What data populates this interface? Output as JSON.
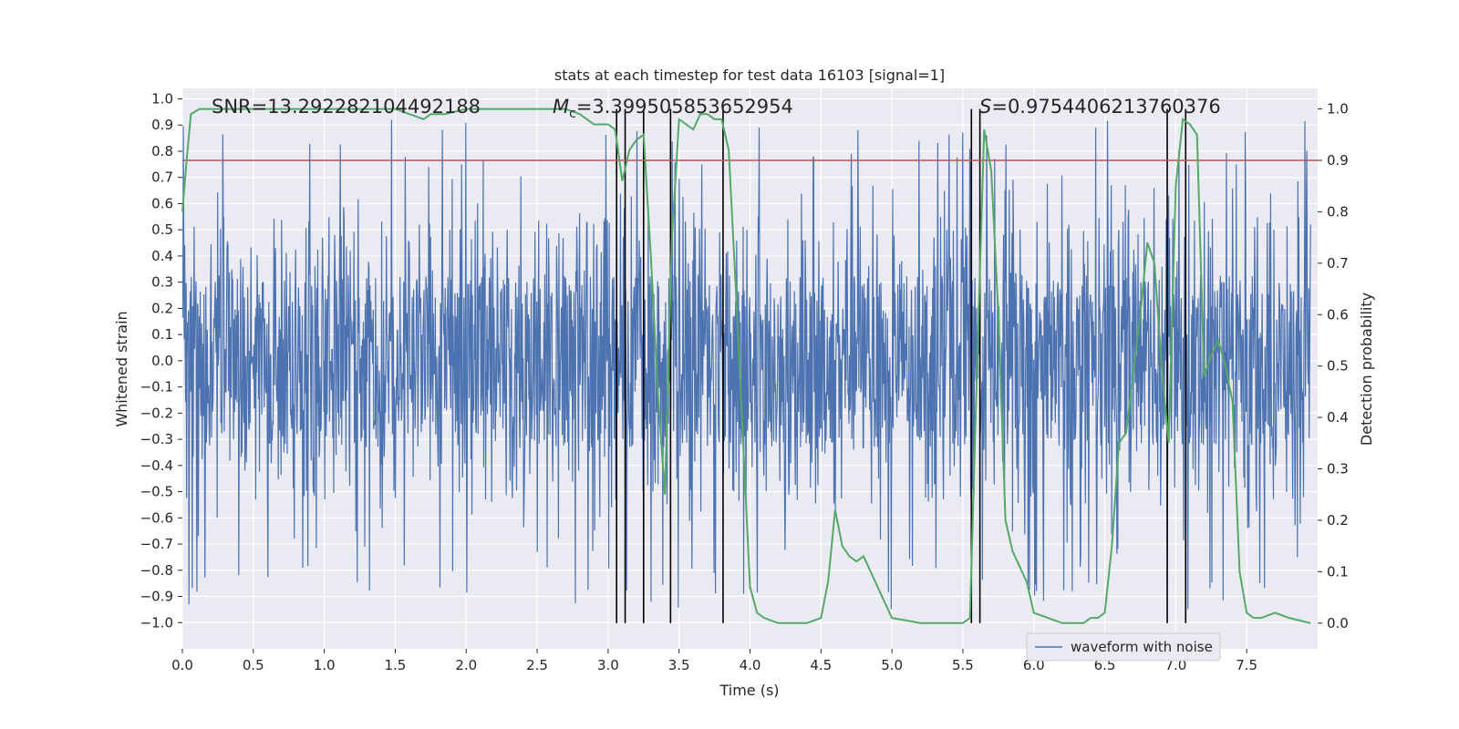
{
  "chart_data": {
    "type": "line",
    "title": "stats at each timestep for test data 16103 [signal=1]",
    "xlabel": "Time (s)",
    "ylabel": "Whitened strain",
    "ylabel_right": "Detection probability",
    "xlim": [
      0.0,
      8.0
    ],
    "ylim": [
      -1.1,
      1.04
    ],
    "ylim_right": [
      -0.05,
      1.04
    ],
    "x_ticks": [
      0.0,
      0.5,
      1.0,
      1.5,
      2.0,
      2.5,
      3.0,
      3.5,
      4.0,
      4.5,
      5.0,
      5.5,
      6.0,
      6.5,
      7.0,
      7.5
    ],
    "x_tick_labels": [
      "0.0",
      "0.5",
      "1.0",
      "1.5",
      "2.0",
      "2.5",
      "3.0",
      "3.5",
      "4.0",
      "4.5",
      "5.0",
      "5.5",
      "6.0",
      "6.5",
      "7.0",
      "7.5"
    ],
    "y_ticks": [
      -1.0,
      -0.9,
      -0.8,
      -0.7,
      -0.6,
      -0.5,
      -0.4,
      -0.3,
      -0.2,
      -0.1,
      0.0,
      0.1,
      0.2,
      0.3,
      0.4,
      0.5,
      0.6,
      0.7,
      0.8,
      0.9,
      1.0
    ],
    "y_tick_labels": [
      "−1.0",
      "−0.9",
      "−0.8",
      "−0.7",
      "−0.6",
      "−0.5",
      "−0.4",
      "−0.3",
      "−0.2",
      "−0.1",
      "0.0",
      "0.1",
      "0.2",
      "0.3",
      "0.4",
      "0.5",
      "0.6",
      "0.7",
      "0.8",
      "0.9",
      "1.0"
    ],
    "y_right_ticks": [
      0.0,
      0.1,
      0.2,
      0.3,
      0.4,
      0.5,
      0.6,
      0.7,
      0.8,
      0.9,
      1.0
    ],
    "y_right_tick_labels": [
      "0.0",
      "0.1",
      "0.2",
      "0.3",
      "0.4",
      "0.5",
      "0.6",
      "0.7",
      "0.8",
      "0.9",
      "1.0"
    ],
    "annotations": {
      "snr": "SNR=13.292282104492188",
      "mc_symbol": "M",
      "mc_sub": "c",
      "mc_value": "=3.399505853652954",
      "s_symbol": "S",
      "s_value": "=0.9754406213760376"
    },
    "threshold": {
      "value_right": 0.9,
      "color": "#c44e52"
    },
    "vertical_lines_x": [
      3.06,
      3.12,
      3.25,
      3.44,
      3.81,
      5.56,
      5.62,
      6.94,
      7.07
    ],
    "waveform": {
      "name": "waveform with noise",
      "color": "#4c72b0",
      "core_amplitude": 0.33,
      "spike_max": 0.92,
      "spike_min": -0.95,
      "description_points": "dense noise"
    },
    "legend": {
      "entries": [
        "waveform with noise"
      ],
      "position": "lower right"
    },
    "probability": {
      "color": "#55a868",
      "x": [
        0.0,
        0.03,
        0.06,
        0.12,
        0.5,
        1.0,
        1.3,
        1.5,
        1.6,
        1.7,
        1.75,
        1.85,
        2.0,
        2.5,
        2.7,
        2.8,
        2.85,
        2.9,
        2.95,
        3.0,
        3.05,
        3.1,
        3.15,
        3.2,
        3.25,
        3.3,
        3.35,
        3.4,
        3.45,
        3.5,
        3.55,
        3.6,
        3.65,
        3.7,
        3.75,
        3.8,
        3.85,
        3.9,
        4.0,
        4.05,
        4.1,
        4.2,
        4.3,
        4.4,
        4.5,
        4.55,
        4.6,
        4.65,
        4.7,
        4.75,
        4.8,
        4.85,
        4.9,
        5.0,
        5.2,
        5.4,
        5.5,
        5.55,
        5.6,
        5.65,
        5.7,
        5.75,
        5.8,
        5.85,
        5.9,
        5.95,
        6.0,
        6.2,
        6.35,
        6.4,
        6.45,
        6.5,
        6.55,
        6.6,
        6.65,
        6.75,
        6.8,
        6.85,
        6.9,
        6.95,
        7.0,
        7.05,
        7.1,
        7.15,
        7.2,
        7.25,
        7.3,
        7.35,
        7.4,
        7.45,
        7.5,
        7.55,
        7.6,
        7.7,
        7.8,
        7.95
      ],
      "y": [
        0.8,
        0.9,
        0.99,
        1.0,
        1.0,
        1.0,
        1.0,
        1.0,
        0.99,
        0.98,
        0.99,
        0.99,
        1.0,
        1.0,
        1.0,
        0.99,
        0.98,
        0.97,
        0.97,
        0.97,
        0.96,
        0.86,
        0.92,
        0.94,
        0.95,
        0.72,
        0.45,
        0.25,
        0.75,
        0.98,
        0.97,
        0.96,
        0.99,
        0.99,
        0.98,
        0.98,
        0.92,
        0.65,
        0.07,
        0.02,
        0.01,
        0.0,
        0.0,
        0.0,
        0.01,
        0.08,
        0.22,
        0.15,
        0.13,
        0.12,
        0.13,
        0.1,
        0.07,
        0.01,
        0.0,
        0.0,
        0.0,
        0.01,
        0.5,
        0.96,
        0.88,
        0.6,
        0.2,
        0.14,
        0.11,
        0.08,
        0.02,
        0.0,
        0.0,
        0.01,
        0.01,
        0.02,
        0.15,
        0.35,
        0.37,
        0.6,
        0.74,
        0.7,
        0.5,
        0.35,
        0.85,
        0.98,
        0.97,
        0.95,
        0.48,
        0.52,
        0.55,
        0.5,
        0.43,
        0.1,
        0.02,
        0.01,
        0.01,
        0.02,
        0.01,
        0.0
      ]
    }
  }
}
